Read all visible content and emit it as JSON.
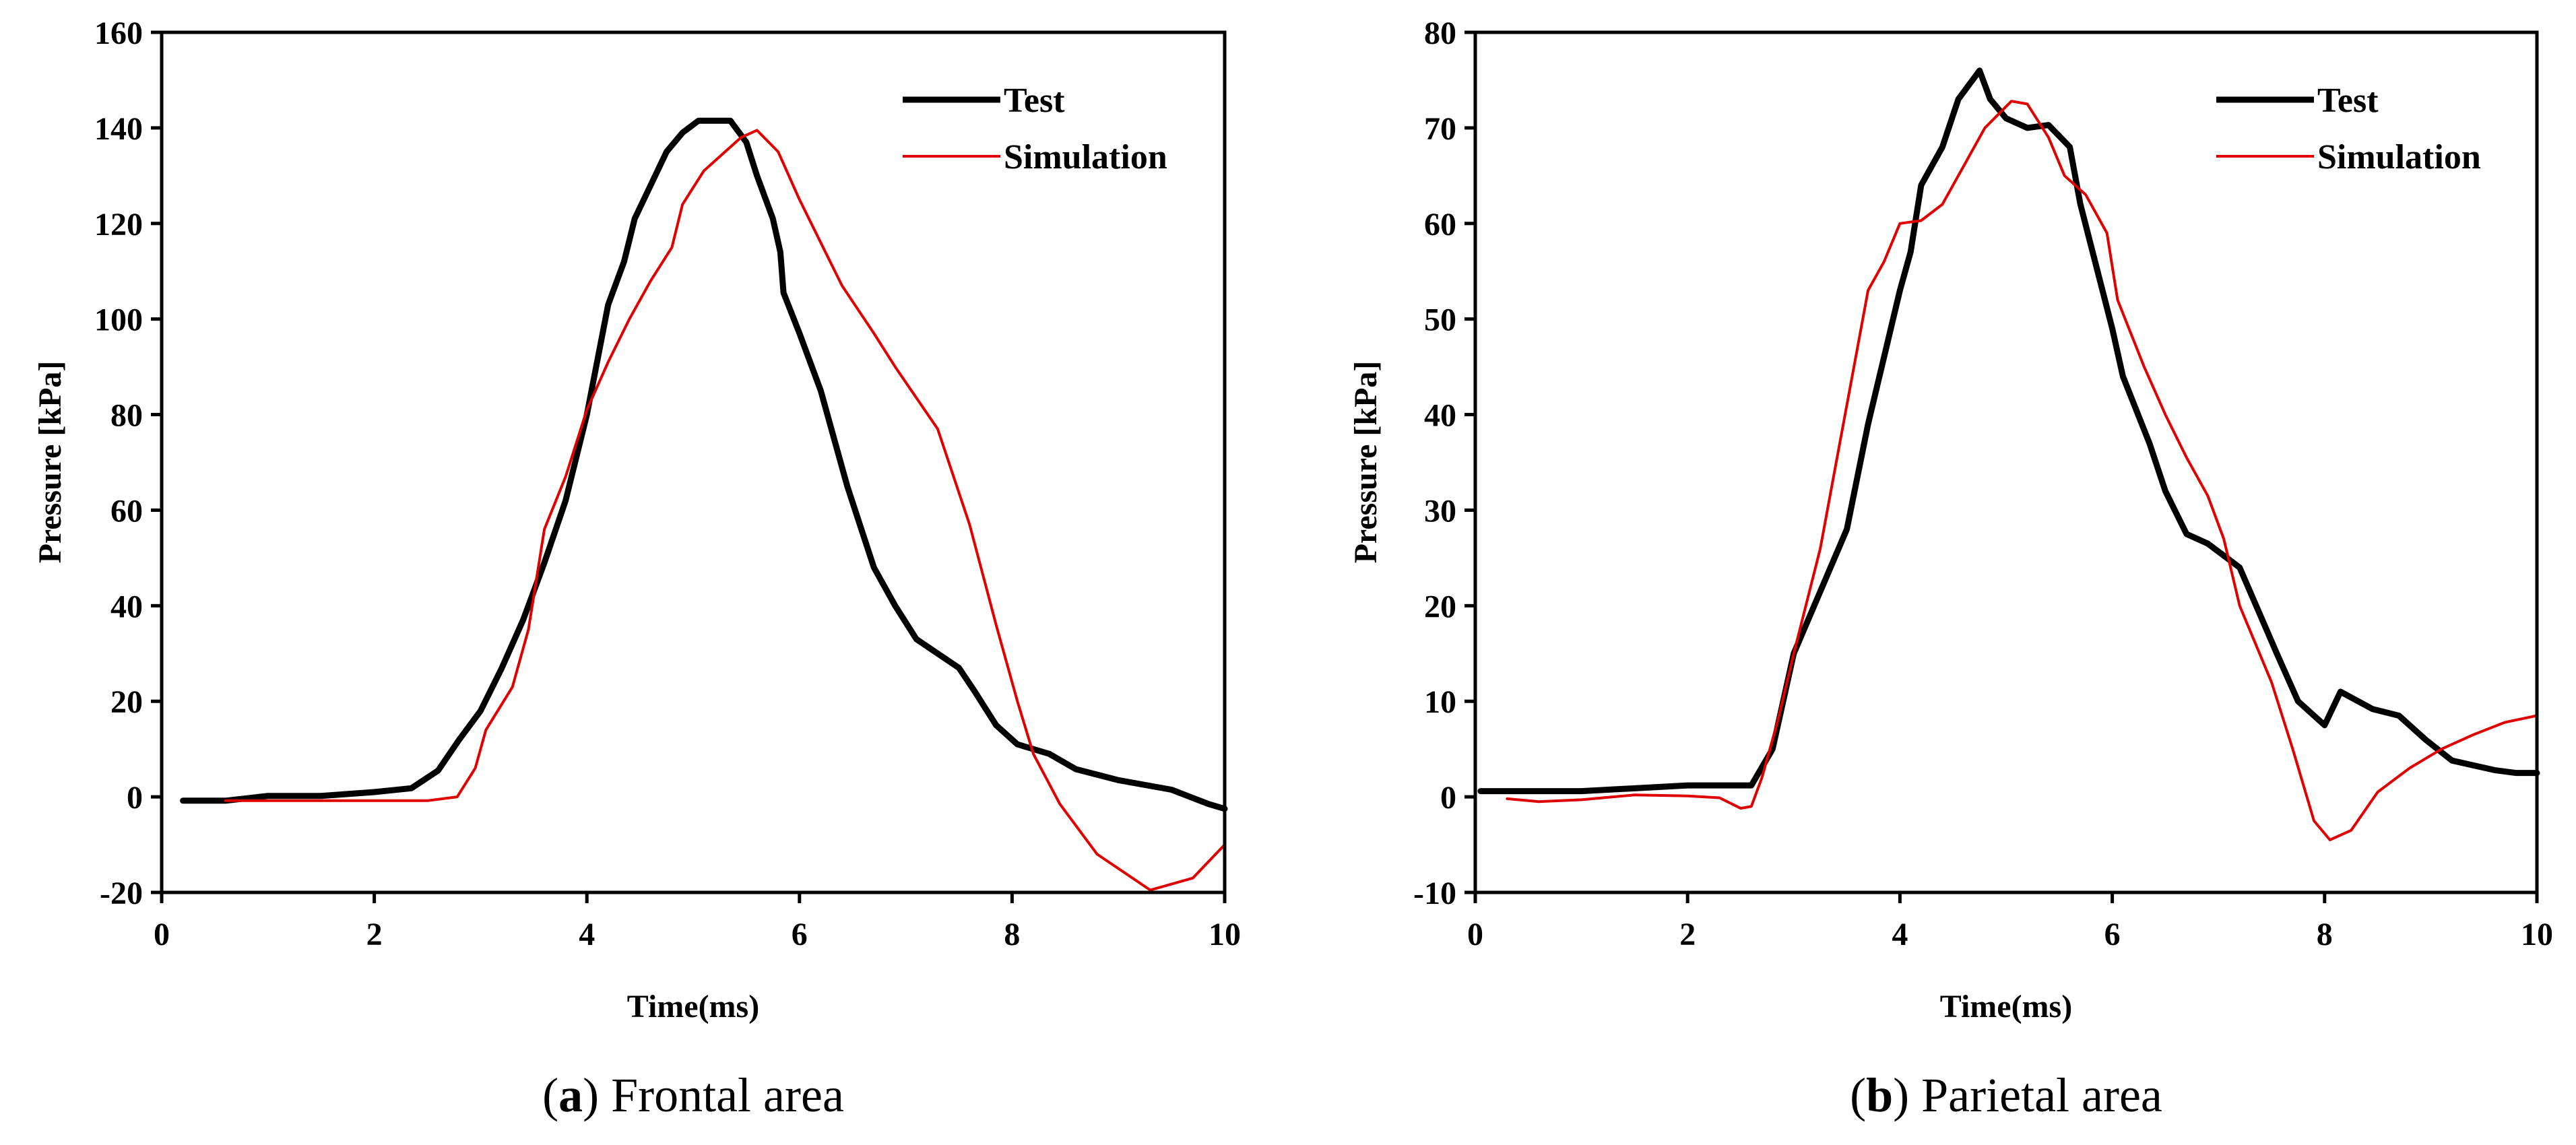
{
  "chart_data": [
    {
      "type": "line",
      "caption": {
        "letter": "a",
        "text": "Frontal area"
      },
      "xlabel": "Time(ms)",
      "ylabel": "Pressure [kPa]",
      "xlim": [
        0,
        10
      ],
      "ylim": [
        -20,
        160
      ],
      "xticks": [
        0,
        2,
        4,
        6,
        8,
        10
      ],
      "yticks": [
        -20,
        0,
        20,
        40,
        60,
        80,
        100,
        120,
        140,
        160
      ],
      "legend": {
        "position": "top-right"
      },
      "series": [
        {
          "name": "Test",
          "color": "#000000",
          "width": 9,
          "points": [
            [
              0.2,
              -0.8
            ],
            [
              0.6,
              -0.8
            ],
            [
              1.0,
              0.2
            ],
            [
              1.5,
              0.2
            ],
            [
              2.0,
              1.0
            ],
            [
              2.35,
              1.8
            ],
            [
              2.6,
              5.5
            ],
            [
              2.8,
              12
            ],
            [
              3.0,
              18
            ],
            [
              3.2,
              27
            ],
            [
              3.4,
              37
            ],
            [
              3.6,
              49
            ],
            [
              3.8,
              62
            ],
            [
              4.0,
              80
            ],
            [
              4.2,
              103
            ],
            [
              4.35,
              112
            ],
            [
              4.45,
              121
            ],
            [
              4.6,
              128
            ],
            [
              4.75,
              135
            ],
            [
              4.9,
              139
            ],
            [
              5.05,
              141.5
            ],
            [
              5.35,
              141.5
            ],
            [
              5.5,
              137
            ],
            [
              5.6,
              130
            ],
            [
              5.75,
              121
            ],
            [
              5.82,
              114
            ],
            [
              5.85,
              105.5
            ],
            [
              6.0,
              97
            ],
            [
              6.2,
              85
            ],
            [
              6.35,
              73
            ],
            [
              6.45,
              65
            ],
            [
              6.7,
              48
            ],
            [
              6.9,
              40
            ],
            [
              7.1,
              33
            ],
            [
              7.5,
              27
            ],
            [
              7.65,
              22
            ],
            [
              7.85,
              15
            ],
            [
              8.05,
              11
            ],
            [
              8.35,
              9
            ],
            [
              8.6,
              5.8
            ],
            [
              9.0,
              3.5
            ],
            [
              9.5,
              1.5
            ],
            [
              9.85,
              -1.5
            ],
            [
              10.0,
              -2.5
            ]
          ]
        },
        {
          "name": "Simulation",
          "color": "#e00000",
          "width": 4,
          "points": [
            [
              0.6,
              -0.8
            ],
            [
              1.2,
              -0.8
            ],
            [
              2.0,
              -0.8
            ],
            [
              2.5,
              -0.8
            ],
            [
              2.78,
              0
            ],
            [
              2.95,
              6
            ],
            [
              3.05,
              14
            ],
            [
              3.3,
              23
            ],
            [
              3.45,
              35
            ],
            [
              3.6,
              56
            ],
            [
              3.8,
              67
            ],
            [
              4.0,
              81
            ],
            [
              4.2,
              91
            ],
            [
              4.4,
              100
            ],
            [
              4.6,
              108
            ],
            [
              4.8,
              115
            ],
            [
              4.9,
              124
            ],
            [
              5.1,
              131
            ],
            [
              5.3,
              135
            ],
            [
              5.45,
              138
            ],
            [
              5.6,
              139.5
            ],
            [
              5.8,
              135
            ],
            [
              6.0,
              125
            ],
            [
              6.4,
              107
            ],
            [
              6.7,
              97
            ],
            [
              6.9,
              90
            ],
            [
              7.3,
              77
            ],
            [
              7.6,
              57
            ],
            [
              7.85,
              36
            ],
            [
              8.05,
              20
            ],
            [
              8.2,
              9
            ],
            [
              8.45,
              -1.5
            ],
            [
              8.8,
              -12
            ],
            [
              9.3,
              -19.5
            ],
            [
              9.7,
              -17
            ],
            [
              10.0,
              -10
            ]
          ]
        }
      ]
    },
    {
      "type": "line",
      "caption": {
        "letter": "b",
        "text": "Parietal area"
      },
      "xlabel": "Time(ms)",
      "ylabel": "Pressure [kPa]",
      "xlim": [
        0,
        10
      ],
      "ylim": [
        -10,
        80
      ],
      "xticks": [
        0,
        2,
        4,
        6,
        8,
        10
      ],
      "yticks": [
        -10,
        0,
        10,
        20,
        30,
        40,
        50,
        60,
        70,
        80
      ],
      "legend": {
        "position": "top-right"
      },
      "series": [
        {
          "name": "Test",
          "color": "#000000",
          "width": 9,
          "points": [
            [
              0.05,
              0.6
            ],
            [
              1.0,
              0.6
            ],
            [
              2.0,
              1.2
            ],
            [
              2.6,
              1.2
            ],
            [
              2.8,
              5
            ],
            [
              3.0,
              15
            ],
            [
              3.5,
              28
            ],
            [
              3.7,
              39
            ],
            [
              4.0,
              53
            ],
            [
              4.1,
              57
            ],
            [
              4.2,
              64
            ],
            [
              4.4,
              68
            ],
            [
              4.55,
              73
            ],
            [
              4.75,
              76
            ],
            [
              4.85,
              73
            ],
            [
              5.0,
              71
            ],
            [
              5.2,
              70
            ],
            [
              5.4,
              70.3
            ],
            [
              5.6,
              68
            ],
            [
              5.7,
              62
            ],
            [
              6.0,
              49
            ],
            [
              6.1,
              44
            ],
            [
              6.35,
              37
            ],
            [
              6.5,
              32
            ],
            [
              6.7,
              27.5
            ],
            [
              6.9,
              26.5
            ],
            [
              7.2,
              24
            ],
            [
              7.55,
              15
            ],
            [
              7.75,
              10
            ],
            [
              8.0,
              7.5
            ],
            [
              8.15,
              11
            ],
            [
              8.45,
              9.2
            ],
            [
              8.7,
              8.5
            ],
            [
              8.95,
              6
            ],
            [
              9.2,
              3.8
            ],
            [
              9.6,
              2.8
            ],
            [
              9.8,
              2.5
            ],
            [
              10.0,
              2.5
            ]
          ]
        },
        {
          "name": "Simulation",
          "color": "#e00000",
          "width": 4,
          "points": [
            [
              0.3,
              -0.2
            ],
            [
              0.6,
              -0.5
            ],
            [
              1.0,
              -0.3
            ],
            [
              1.5,
              0.2
            ],
            [
              2.0,
              0.1
            ],
            [
              2.3,
              -0.1
            ],
            [
              2.5,
              -1.2
            ],
            [
              2.6,
              -1.0
            ],
            [
              2.7,
              2
            ],
            [
              2.85,
              8
            ],
            [
              3.0,
              15
            ],
            [
              3.25,
              26
            ],
            [
              3.4,
              35
            ],
            [
              3.6,
              47
            ],
            [
              3.7,
              53
            ],
            [
              3.85,
              56
            ],
            [
              4.0,
              60
            ],
            [
              4.2,
              60.3
            ],
            [
              4.4,
              62
            ],
            [
              4.6,
              66
            ],
            [
              4.8,
              70
            ],
            [
              5.05,
              72.8
            ],
            [
              5.2,
              72.5
            ],
            [
              5.4,
              69
            ],
            [
              5.55,
              65
            ],
            [
              5.75,
              63
            ],
            [
              5.95,
              59
            ],
            [
              6.05,
              52
            ],
            [
              6.3,
              45
            ],
            [
              6.5,
              40
            ],
            [
              6.7,
              35.5
            ],
            [
              6.9,
              31.5
            ],
            [
              7.05,
              27
            ],
            [
              7.2,
              20
            ],
            [
              7.5,
              12
            ],
            [
              7.7,
              5
            ],
            [
              7.9,
              -2.5
            ],
            [
              8.05,
              -4.5
            ],
            [
              8.25,
              -3.5
            ],
            [
              8.5,
              0.5
            ],
            [
              8.8,
              3
            ],
            [
              9.1,
              5
            ],
            [
              9.4,
              6.5
            ],
            [
              9.7,
              7.8
            ],
            [
              10.0,
              8.5
            ]
          ]
        }
      ]
    }
  ]
}
